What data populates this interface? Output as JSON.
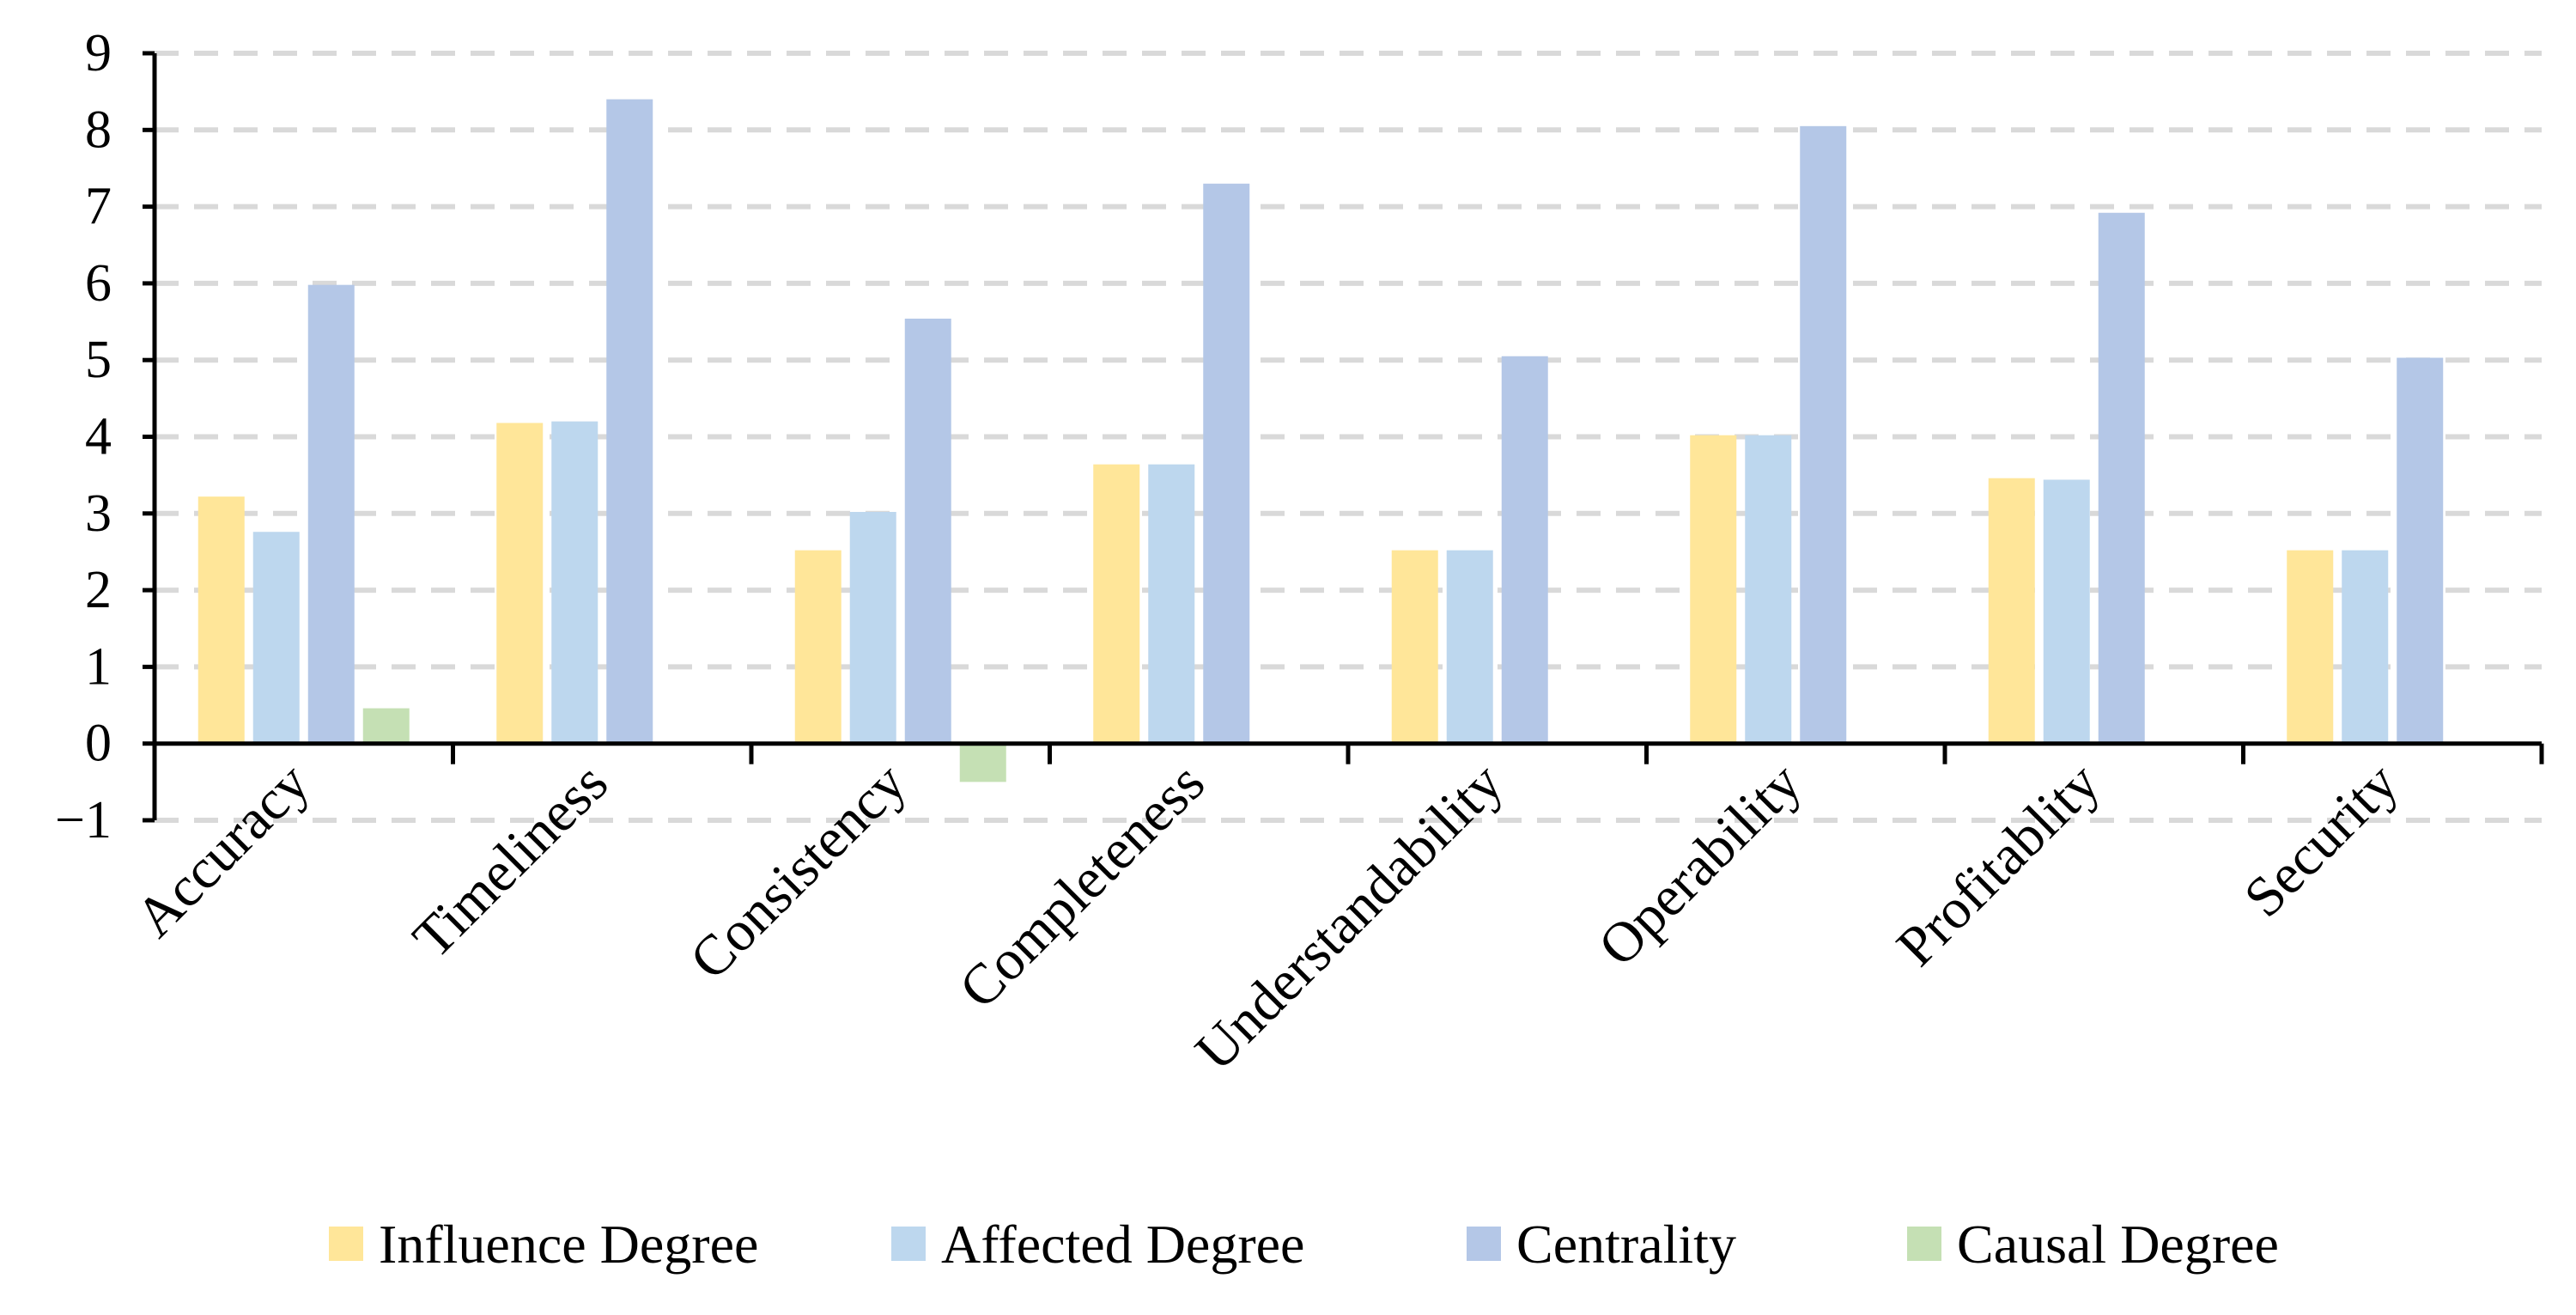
{
  "chart_data": {
    "type": "bar",
    "title": "",
    "xlabel": "",
    "ylabel": "",
    "ylim": [
      -1,
      9
    ],
    "yticks": [
      -1,
      0,
      1,
      2,
      3,
      4,
      5,
      6,
      7,
      8,
      9
    ],
    "ytick_labels": [
      "−1",
      "0",
      "1",
      "2",
      "3",
      "4",
      "5",
      "6",
      "7",
      "8",
      "9"
    ],
    "grid": true,
    "legend_position": "bottom",
    "categories": [
      "Accuracy",
      "Timeliness",
      "Consistency",
      "Completeness",
      "Understandability",
      "Operability",
      "Profitablity",
      "Security"
    ],
    "series": [
      {
        "name": "Influence Degree",
        "color": "#FFE699",
        "values": [
          3.22,
          4.18,
          2.52,
          3.64,
          2.52,
          4.02,
          3.46,
          2.52
        ]
      },
      {
        "name": "Affected Degree",
        "color": "#BDD7EE",
        "values": [
          2.76,
          4.2,
          3.02,
          3.64,
          2.52,
          4.02,
          3.44,
          2.52
        ]
      },
      {
        "name": "Centrality",
        "color": "#B4C7E7",
        "values": [
          5.98,
          8.4,
          5.54,
          7.3,
          5.05,
          8.05,
          6.92,
          5.03
        ]
      },
      {
        "name": "Causal Degree",
        "color": "#C5E0B4",
        "values": [
          0.46,
          0.0,
          -0.5,
          0.0,
          0.0,
          0.0,
          0.0,
          0.0
        ]
      }
    ]
  }
}
